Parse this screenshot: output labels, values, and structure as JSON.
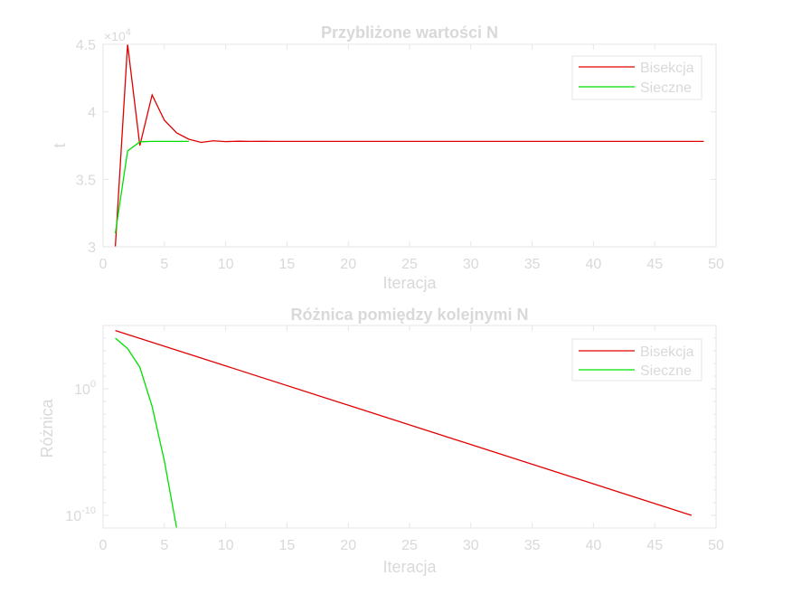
{
  "chart_data": [
    {
      "type": "line",
      "title": "Przybliżone wartości N",
      "xlabel": "Iteracja",
      "ylabel": "t",
      "xlim": [
        0,
        50
      ],
      "ylim": [
        30000,
        45000
      ],
      "y_scale": "linear",
      "y_exponent_label": "×10",
      "y_exponent_power": "4",
      "x_ticks": [
        0,
        5,
        10,
        15,
        20,
        25,
        30,
        35,
        40,
        45,
        50
      ],
      "x_tick_labels": [
        "0",
        "5",
        "10",
        "15",
        "20",
        "25",
        "30",
        "35",
        "40",
        "45",
        "50"
      ],
      "y_ticks": [
        30000,
        35000,
        40000,
        45000
      ],
      "y_tick_labels": [
        "3",
        "3.5",
        "4",
        "4.5"
      ],
      "grid": false,
      "legend": "top-right",
      "series": [
        {
          "name": "Bisekcja",
          "color": "#e00000",
          "x": [
            1,
            2,
            3,
            4,
            5,
            6,
            7,
            8,
            9,
            10,
            11,
            12,
            13,
            14,
            49
          ],
          "y": [
            30000,
            45000,
            37500,
            41250,
            39375,
            38438,
            37969,
            37734,
            37852,
            37793,
            37822,
            37808,
            37815,
            37812,
            37812
          ]
        },
        {
          "name": "Sieczne",
          "color": "#00e000",
          "x": [
            1,
            2,
            3,
            4,
            5,
            6,
            7
          ],
          "y": [
            31000,
            37100,
            37780,
            37812,
            37812,
            37812,
            37812
          ]
        }
      ]
    },
    {
      "type": "line",
      "title": "Różnica pomiędzy kolejnymi N",
      "xlabel": "Iteracja",
      "ylabel": "Różnica",
      "xlim": [
        0,
        50
      ],
      "ylim": [
        1e-11,
        100000.0
      ],
      "y_scale": "log",
      "x_ticks": [
        0,
        5,
        10,
        15,
        20,
        25,
        30,
        35,
        40,
        45,
        50
      ],
      "x_tick_labels": [
        "0",
        "5",
        "10",
        "15",
        "20",
        "25",
        "30",
        "35",
        "40",
        "45",
        "50"
      ],
      "y_ticks": [
        1e-10,
        1
      ],
      "y_tick_base": "10",
      "y_tick_powers": [
        "-10",
        "0"
      ],
      "grid": false,
      "legend": "top-right",
      "series": [
        {
          "name": "Bisekcja",
          "color": "#e00000",
          "x": [
            1,
            48
          ],
          "y": [
            40000,
            1e-10
          ]
        },
        {
          "name": "Sieczne",
          "color": "#00e000",
          "x": [
            1,
            2,
            3,
            4,
            5,
            6
          ],
          "y": [
            10000,
            1500,
            50,
            0.04,
            2e-06,
            1e-11
          ]
        }
      ]
    }
  ]
}
